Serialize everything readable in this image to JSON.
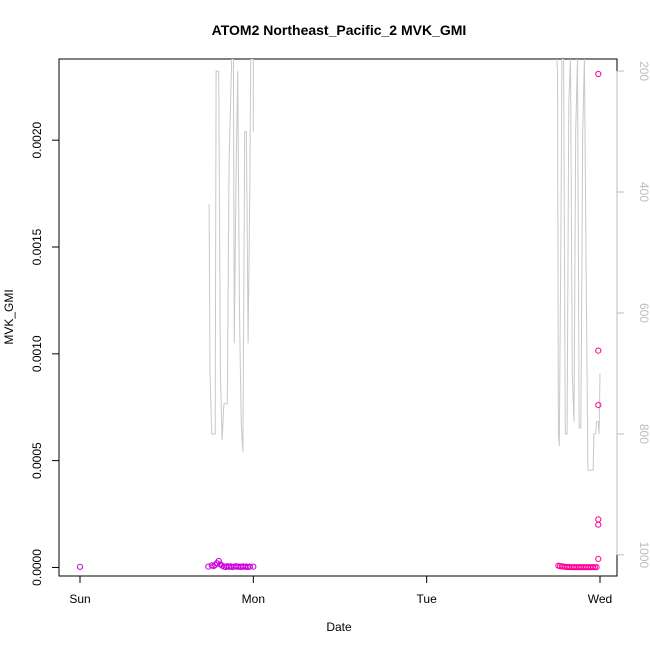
{
  "chart_data": {
    "type": "scatter",
    "title": "ATOM2 Northeast_Pacific_2 MVK_GMI",
    "xlabel": "Date",
    "ylabel": "MVK_GMI",
    "x_ticks": [
      "Sun",
      "Mon",
      "Tue",
      "Wed"
    ],
    "xlim_days": [
      0,
      3.0
    ],
    "ylim": [
      -4e-05,
      0.00238
    ],
    "y_ticks": [
      "0.0000",
      "0.0005",
      "0.0010",
      "0.0015",
      "0.0020"
    ],
    "y_tick_values": [
      0,
      0.0005,
      0.001,
      0.0015,
      0.002
    ],
    "y2_ticks": [
      "200",
      "400",
      "600",
      "800",
      "1000"
    ],
    "y2_tick_values": [
      200,
      400,
      600,
      800,
      1000
    ],
    "y2lim": [
      1035,
      180
    ],
    "colors": {
      "points_early": "#cc00dd",
      "points_late": "#ff0099",
      "pressure_line": "#c8c8c8",
      "axis": "#000000",
      "right_axis": "#bdbdbd"
    },
    "points": [
      {
        "x": 0.0,
        "y": 3e-06
      },
      {
        "x": 0.74,
        "y": 4e-06
      },
      {
        "x": 0.76,
        "y": 1e-05
      },
      {
        "x": 0.77,
        "y": 6e-06
      },
      {
        "x": 0.78,
        "y": 1.2e-05
      },
      {
        "x": 0.79,
        "y": 2e-05
      },
      {
        "x": 0.8,
        "y": 3e-05
      },
      {
        "x": 0.81,
        "y": 1.5e-05
      },
      {
        "x": 0.82,
        "y": 8e-06
      },
      {
        "x": 0.83,
        "y": 4e-06
      },
      {
        "x": 0.84,
        "y": 2e-06
      },
      {
        "x": 0.85,
        "y": 6e-06
      },
      {
        "x": 0.86,
        "y": 3e-06
      },
      {
        "x": 0.87,
        "y": 5e-06
      },
      {
        "x": 0.88,
        "y": 2e-06
      },
      {
        "x": 0.89,
        "y": 4e-06
      },
      {
        "x": 0.9,
        "y": 6e-06
      },
      {
        "x": 0.91,
        "y": 3e-06
      },
      {
        "x": 0.92,
        "y": 4e-06
      },
      {
        "x": 0.93,
        "y": 2e-06
      },
      {
        "x": 0.94,
        "y": 5e-06
      },
      {
        "x": 0.95,
        "y": 3e-06
      },
      {
        "x": 0.96,
        "y": 4e-06
      },
      {
        "x": 0.97,
        "y": 2e-06
      },
      {
        "x": 0.98,
        "y": 4e-06
      },
      {
        "x": 1.0,
        "y": 4e-06
      },
      {
        "x": 2.76,
        "y": 8e-06
      },
      {
        "x": 2.77,
        "y": 6e-06
      },
      {
        "x": 2.78,
        "y": 5e-06
      },
      {
        "x": 2.79,
        "y": 4e-06
      },
      {
        "x": 2.8,
        "y": 3e-06
      },
      {
        "x": 2.81,
        "y": 2e-06
      },
      {
        "x": 2.82,
        "y": 2e-06
      },
      {
        "x": 2.83,
        "y": 1e-06
      },
      {
        "x": 2.84,
        "y": 1e-06
      },
      {
        "x": 2.85,
        "y": 1e-06
      },
      {
        "x": 2.86,
        "y": 1e-06
      },
      {
        "x": 2.87,
        "y": 1e-06
      },
      {
        "x": 2.88,
        "y": 1e-06
      },
      {
        "x": 2.89,
        "y": 1e-06
      },
      {
        "x": 2.9,
        "y": 1e-06
      },
      {
        "x": 2.91,
        "y": 1e-06
      },
      {
        "x": 2.92,
        "y": 1e-06
      },
      {
        "x": 2.93,
        "y": 1e-06
      },
      {
        "x": 2.94,
        "y": 1e-06
      },
      {
        "x": 2.95,
        "y": 1e-06
      },
      {
        "x": 2.96,
        "y": 1e-06
      },
      {
        "x": 2.97,
        "y": 1e-06
      },
      {
        "x": 2.98,
        "y": 1e-06
      },
      {
        "x": 2.99,
        "y": 4e-05
      },
      {
        "x": 2.99,
        "y": 0.0002
      },
      {
        "x": 2.99,
        "y": 0.000225
      },
      {
        "x": 2.99,
        "y": 0.00076
      },
      {
        "x": 2.99,
        "y": 0.001015
      },
      {
        "x": 2.99,
        "y": 0.00231
      }
    ],
    "pressure_line": [
      [
        0.745,
        420
      ],
      [
        0.75,
        700
      ],
      [
        0.76,
        800
      ],
      [
        0.78,
        800
      ],
      [
        0.785,
        200
      ],
      [
        0.8,
        200
      ],
      [
        0.81,
        700
      ],
      [
        0.82,
        810
      ],
      [
        0.83,
        750
      ],
      [
        0.85,
        750
      ],
      [
        0.86,
        350
      ],
      [
        0.875,
        180
      ],
      [
        0.885,
        180
      ],
      [
        0.89,
        650
      ],
      [
        0.9,
        380
      ],
      [
        0.91,
        200
      ],
      [
        0.92,
        600
      ],
      [
        0.93,
        780
      ],
      [
        0.935,
        810
      ],
      [
        0.94,
        830
      ],
      [
        0.95,
        300
      ],
      [
        0.96,
        300
      ],
      [
        0.97,
        650
      ],
      [
        0.98,
        380
      ],
      [
        0.985,
        180
      ],
      [
        1.0,
        180
      ],
      [
        1.0,
        300
      ],
      [
        2.75,
        180
      ],
      [
        2.755,
        200
      ],
      [
        2.76,
        800
      ],
      [
        2.765,
        820
      ],
      [
        2.775,
        450
      ],
      [
        2.78,
        180
      ],
      [
        2.79,
        180
      ],
      [
        2.8,
        800
      ],
      [
        2.81,
        800
      ],
      [
        2.82,
        250
      ],
      [
        2.83,
        180
      ],
      [
        2.84,
        700
      ],
      [
        2.85,
        780
      ],
      [
        2.86,
        300
      ],
      [
        2.87,
        180
      ],
      [
        2.88,
        790
      ],
      [
        2.89,
        790
      ],
      [
        2.9,
        300
      ],
      [
        2.91,
        180
      ],
      [
        2.92,
        520
      ],
      [
        2.93,
        860
      ],
      [
        2.96,
        860
      ],
      [
        2.965,
        800
      ],
      [
        2.975,
        800
      ],
      [
        2.98,
        780
      ],
      [
        2.99,
        780
      ],
      [
        2.995,
        800
      ],
      [
        3.0,
        700
      ]
    ]
  }
}
